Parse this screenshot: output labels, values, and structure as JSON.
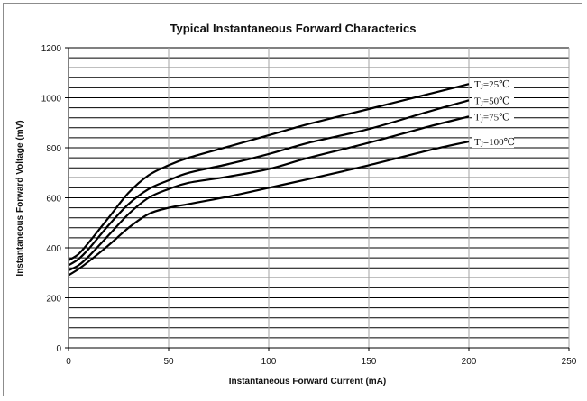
{
  "chart_data": {
    "type": "line",
    "title": "Typical Instantaneous Forward Characterics",
    "xlabel": "Instantaneous Forward Current (mA)",
    "ylabel": "Instantaneous Forward Voltage (mV)",
    "xlim": [
      0,
      250
    ],
    "ylim": [
      0,
      1200
    ],
    "x_ticks": [
      "0",
      "50",
      "100",
      "150",
      "200",
      "250"
    ],
    "y_ticks": [
      "0",
      "200",
      "400",
      "600",
      "800",
      "1000",
      "1200"
    ],
    "x_tick_values": [
      0,
      50,
      100,
      150,
      200,
      250
    ],
    "y_tick_values": [
      0,
      200,
      400,
      600,
      800,
      1000,
      1200
    ],
    "y_minor_step": 40,
    "grid": true,
    "series": [
      {
        "name": "TJ=25℃",
        "label_sub": "J",
        "label_head": "T",
        "label_tail": "=25℃",
        "x": [
          0,
          5,
          10,
          20,
          30,
          40,
          50,
          60,
          80,
          100,
          120,
          150,
          180,
          200
        ],
        "y": [
          350,
          375,
          420,
          520,
          620,
          690,
          730,
          760,
          805,
          850,
          895,
          955,
          1015,
          1055
        ]
      },
      {
        "name": "TJ=50℃",
        "label_sub": "J",
        "label_head": "T",
        "label_tail": "=50℃",
        "x": [
          0,
          5,
          10,
          20,
          30,
          40,
          50,
          60,
          80,
          100,
          120,
          150,
          180,
          200
        ],
        "y": [
          330,
          355,
          395,
          490,
          575,
          635,
          670,
          700,
          735,
          775,
          820,
          875,
          945,
          990
        ]
      },
      {
        "name": "TJ=75℃",
        "label_sub": "J",
        "label_head": "T",
        "label_tail": "=75℃",
        "x": [
          0,
          5,
          10,
          20,
          30,
          40,
          50,
          60,
          80,
          100,
          120,
          150,
          180,
          200
        ],
        "y": [
          310,
          330,
          365,
          450,
          535,
          600,
          635,
          660,
          685,
          715,
          760,
          820,
          885,
          925
        ]
      },
      {
        "name": "TJ=100℃",
        "label_sub": "J",
        "label_head": "T",
        "label_tail": "=100℃",
        "x": [
          0,
          5,
          10,
          20,
          30,
          40,
          50,
          60,
          80,
          100,
          120,
          150,
          180,
          200
        ],
        "y": [
          290,
          315,
          345,
          410,
          480,
          535,
          560,
          575,
          605,
          640,
          675,
          730,
          790,
          825
        ]
      }
    ]
  }
}
